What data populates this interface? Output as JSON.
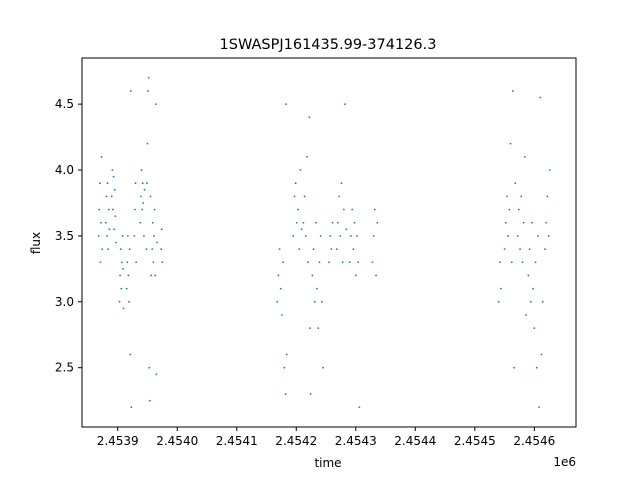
{
  "chart_data": {
    "type": "scatter",
    "title": "1SWASPJ161435.99-374126.3",
    "xlabel": "time",
    "ylabel": "flux",
    "x_offset_label": "1e6",
    "xlim": [
      2.45384,
      2.45467
    ],
    "ylim": [
      2.05,
      4.85
    ],
    "x_ticks": [
      2.4539,
      2.454,
      2.4541,
      2.4542,
      2.4543,
      2.4544,
      2.4545,
      2.4546
    ],
    "x_tick_labels": [
      "2.4539",
      "2.4540",
      "2.4541",
      "2.4542",
      "2.4543",
      "2.4544",
      "2.4545",
      "2.4546"
    ],
    "y_ticks": [
      2.5,
      3.0,
      3.5,
      4.0,
      4.5
    ],
    "y_tick_labels": [
      "2.5",
      "3.0",
      "3.5",
      "4.0",
      "4.5"
    ],
    "grid": false,
    "marker_color": "#1f77b4",
    "series": [
      {
        "points": [
          {
            "x": 2.453868,
            "y": 3.5
          },
          {
            "x": 2.453869,
            "y": 3.7
          },
          {
            "x": 2.45387,
            "y": 3.9
          },
          {
            "x": 2.453871,
            "y": 3.3
          },
          {
            "x": 2.453872,
            "y": 3.6
          },
          {
            "x": 2.453873,
            "y": 4.1
          },
          {
            "x": 2.453874,
            "y": 3.4
          },
          {
            "x": 2.45388,
            "y": 3.6
          },
          {
            "x": 2.453881,
            "y": 3.8
          },
          {
            "x": 2.453882,
            "y": 3.5
          },
          {
            "x": 2.453883,
            "y": 3.9
          },
          {
            "x": 2.453884,
            "y": 3.4
          },
          {
            "x": 2.453885,
            "y": 3.7
          },
          {
            "x": 2.453886,
            "y": 3.55
          },
          {
            "x": 2.45389,
            "y": 3.8
          },
          {
            "x": 2.453891,
            "y": 4.0
          },
          {
            "x": 2.453892,
            "y": 3.7
          },
          {
            "x": 2.453893,
            "y": 3.95
          },
          {
            "x": 2.453894,
            "y": 3.55
          },
          {
            "x": 2.453895,
            "y": 3.85
          },
          {
            "x": 2.453896,
            "y": 3.65
          },
          {
            "x": 2.453897,
            "y": 3.45
          },
          {
            "x": 2.453903,
            "y": 3.0
          },
          {
            "x": 2.453904,
            "y": 3.2
          },
          {
            "x": 2.453905,
            "y": 3.4
          },
          {
            "x": 2.453906,
            "y": 3.1
          },
          {
            "x": 2.453907,
            "y": 3.3
          },
          {
            "x": 2.453908,
            "y": 3.5
          },
          {
            "x": 2.453909,
            "y": 3.25
          },
          {
            "x": 2.45391,
            "y": 2.95
          },
          {
            "x": 2.453915,
            "y": 3.1
          },
          {
            "x": 2.453916,
            "y": 3.3
          },
          {
            "x": 2.453917,
            "y": 3.5
          },
          {
            "x": 2.453918,
            "y": 3.2
          },
          {
            "x": 2.453919,
            "y": 3.0
          },
          {
            "x": 2.45392,
            "y": 3.4
          },
          {
            "x": 2.453921,
            "y": 2.6
          },
          {
            "x": 2.453922,
            "y": 4.6
          },
          {
            "x": 2.453923,
            "y": 2.2
          },
          {
            "x": 2.453928,
            "y": 3.5
          },
          {
            "x": 2.453929,
            "y": 3.7
          },
          {
            "x": 2.45393,
            "y": 3.9
          },
          {
            "x": 2.453931,
            "y": 3.3
          },
          {
            "x": 2.453938,
            "y": 3.6
          },
          {
            "x": 2.453939,
            "y": 3.8
          },
          {
            "x": 2.45394,
            "y": 4.0
          },
          {
            "x": 2.453941,
            "y": 3.7
          },
          {
            "x": 2.453942,
            "y": 3.9
          },
          {
            "x": 2.453943,
            "y": 3.75
          },
          {
            "x": 2.453944,
            "y": 3.5
          },
          {
            "x": 2.453945,
            "y": 3.85
          },
          {
            "x": 2.453948,
            "y": 3.4
          },
          {
            "x": 2.453949,
            "y": 3.9
          },
          {
            "x": 2.45395,
            "y": 4.2
          },
          {
            "x": 2.453951,
            "y": 4.6
          },
          {
            "x": 2.453952,
            "y": 4.7
          },
          {
            "x": 2.453953,
            "y": 2.5
          },
          {
            "x": 2.453954,
            "y": 2.25
          },
          {
            "x": 2.453955,
            "y": 3.8
          },
          {
            "x": 2.453956,
            "y": 3.2
          },
          {
            "x": 2.453958,
            "y": 3.4
          },
          {
            "x": 2.453959,
            "y": 3.6
          },
          {
            "x": 2.45396,
            "y": 3.3
          },
          {
            "x": 2.453961,
            "y": 3.5
          },
          {
            "x": 2.453962,
            "y": 3.7
          },
          {
            "x": 2.453963,
            "y": 3.2
          },
          {
            "x": 2.453964,
            "y": 4.5
          },
          {
            "x": 2.453965,
            "y": 2.45
          },
          {
            "x": 2.453966,
            "y": 3.45
          },
          {
            "x": 2.453973,
            "y": 3.4
          },
          {
            "x": 2.453974,
            "y": 3.55
          },
          {
            "x": 2.453975,
            "y": 3.3
          },
          {
            "x": 2.454168,
            "y": 3.0
          },
          {
            "x": 2.45417,
            "y": 3.2
          },
          {
            "x": 2.454172,
            "y": 3.4
          },
          {
            "x": 2.454174,
            "y": 3.1
          },
          {
            "x": 2.454176,
            "y": 2.9
          },
          {
            "x": 2.454178,
            "y": 3.3
          },
          {
            "x": 2.45418,
            "y": 2.5
          },
          {
            "x": 2.454182,
            "y": 2.3
          },
          {
            "x": 2.454183,
            "y": 4.5
          },
          {
            "x": 2.454184,
            "y": 2.6
          },
          {
            "x": 2.454195,
            "y": 3.5
          },
          {
            "x": 2.454197,
            "y": 3.8
          },
          {
            "x": 2.454199,
            "y": 3.9
          },
          {
            "x": 2.454201,
            "y": 3.6
          },
          {
            "x": 2.454203,
            "y": 3.7
          },
          {
            "x": 2.454205,
            "y": 3.4
          },
          {
            "x": 2.454207,
            "y": 4.0
          },
          {
            "x": 2.454209,
            "y": 3.55
          },
          {
            "x": 2.454212,
            "y": 3.6
          },
          {
            "x": 2.454214,
            "y": 3.8
          },
          {
            "x": 2.454216,
            "y": 3.5
          },
          {
            "x": 2.454218,
            "y": 4.1
          },
          {
            "x": 2.45422,
            "y": 3.3
          },
          {
            "x": 2.454222,
            "y": 4.4
          },
          {
            "x": 2.454223,
            "y": 2.8
          },
          {
            "x": 2.454224,
            "y": 2.3
          },
          {
            "x": 2.454227,
            "y": 3.2
          },
          {
            "x": 2.454229,
            "y": 3.4
          },
          {
            "x": 2.454231,
            "y": 3.0
          },
          {
            "x": 2.454233,
            "y": 3.6
          },
          {
            "x": 2.454235,
            "y": 3.1
          },
          {
            "x": 2.454237,
            "y": 2.8
          },
          {
            "x": 2.454239,
            "y": 3.3
          },
          {
            "x": 2.454241,
            "y": 3.5
          },
          {
            "x": 2.454243,
            "y": 3.0
          },
          {
            "x": 2.454245,
            "y": 2.5
          },
          {
            "x": 2.454255,
            "y": 3.3
          },
          {
            "x": 2.454257,
            "y": 3.5
          },
          {
            "x": 2.454259,
            "y": 3.4
          },
          {
            "x": 2.454261,
            "y": 3.6
          },
          {
            "x": 2.454268,
            "y": 3.4
          },
          {
            "x": 2.45427,
            "y": 3.6
          },
          {
            "x": 2.454272,
            "y": 3.8
          },
          {
            "x": 2.454274,
            "y": 3.5
          },
          {
            "x": 2.454276,
            "y": 3.9
          },
          {
            "x": 2.454278,
            "y": 3.3
          },
          {
            "x": 2.45428,
            "y": 3.7
          },
          {
            "x": 2.454282,
            "y": 4.5
          },
          {
            "x": 2.454284,
            "y": 3.55
          },
          {
            "x": 2.45429,
            "y": 3.3
          },
          {
            "x": 2.454292,
            "y": 3.5
          },
          {
            "x": 2.454294,
            "y": 3.7
          },
          {
            "x": 2.454296,
            "y": 3.4
          },
          {
            "x": 2.454298,
            "y": 3.6
          },
          {
            "x": 2.4543,
            "y": 3.2
          },
          {
            "x": 2.454302,
            "y": 3.5
          },
          {
            "x": 2.454304,
            "y": 3.3
          },
          {
            "x": 2.454306,
            "y": 2.2
          },
          {
            "x": 2.454328,
            "y": 3.3
          },
          {
            "x": 2.45433,
            "y": 3.5
          },
          {
            "x": 2.454332,
            "y": 3.7
          },
          {
            "x": 2.454334,
            "y": 3.2
          },
          {
            "x": 2.454336,
            "y": 3.6
          },
          {
            "x": 2.45454,
            "y": 3.0
          },
          {
            "x": 2.454542,
            "y": 3.3
          },
          {
            "x": 2.454544,
            "y": 3.1
          },
          {
            "x": 2.45455,
            "y": 3.4
          },
          {
            "x": 2.454552,
            "y": 3.6
          },
          {
            "x": 2.454554,
            "y": 3.8
          },
          {
            "x": 2.454556,
            "y": 3.5
          },
          {
            "x": 2.454558,
            "y": 3.7
          },
          {
            "x": 2.45456,
            "y": 4.2
          },
          {
            "x": 2.454562,
            "y": 3.3
          },
          {
            "x": 2.454564,
            "y": 4.6
          },
          {
            "x": 2.454566,
            "y": 2.5
          },
          {
            "x": 2.454568,
            "y": 3.9
          },
          {
            "x": 2.454572,
            "y": 3.5
          },
          {
            "x": 2.454574,
            "y": 3.7
          },
          {
            "x": 2.454576,
            "y": 3.4
          },
          {
            "x": 2.454578,
            "y": 3.8
          },
          {
            "x": 2.45458,
            "y": 3.3
          },
          {
            "x": 2.454582,
            "y": 3.6
          },
          {
            "x": 2.454584,
            "y": 4.1
          },
          {
            "x": 2.454586,
            "y": 2.9
          },
          {
            "x": 2.45459,
            "y": 3.2
          },
          {
            "x": 2.454592,
            "y": 3.4
          },
          {
            "x": 2.454594,
            "y": 3.0
          },
          {
            "x": 2.454596,
            "y": 3.6
          },
          {
            "x": 2.454598,
            "y": 3.1
          },
          {
            "x": 2.4546,
            "y": 2.8
          },
          {
            "x": 2.454602,
            "y": 3.3
          },
          {
            "x": 2.454604,
            "y": 2.5
          },
          {
            "x": 2.454606,
            "y": 3.5
          },
          {
            "x": 2.454608,
            "y": 2.2
          },
          {
            "x": 2.45461,
            "y": 4.55
          },
          {
            "x": 2.454612,
            "y": 2.6
          },
          {
            "x": 2.454614,
            "y": 3.0
          },
          {
            "x": 2.454618,
            "y": 3.4
          },
          {
            "x": 2.45462,
            "y": 3.6
          },
          {
            "x": 2.454622,
            "y": 3.8
          },
          {
            "x": 2.454624,
            "y": 3.5
          },
          {
            "x": 2.454626,
            "y": 4.0
          }
        ]
      }
    ]
  }
}
